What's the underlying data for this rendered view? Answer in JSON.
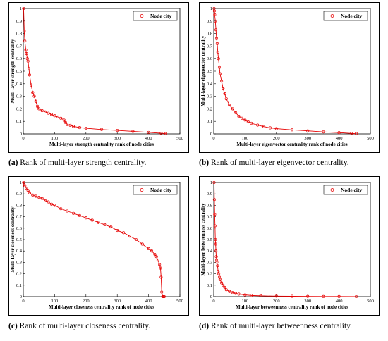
{
  "captions": [
    {
      "label": "(a)",
      "text": " Rank of multi-layer strength centrality."
    },
    {
      "label": "(b)",
      "text": " Rank of multi-layer eigenvector centrality."
    },
    {
      "label": "(c)",
      "text": " Rank of multi-layer closeness centrality."
    },
    {
      "label": "(d)",
      "text": " Rank of multi-layer betweenness centrality."
    }
  ],
  "colors": {
    "series": "#e60000",
    "axis": "#000000"
  },
  "chart_data": [
    {
      "type": "line",
      "xlabel": "Multi-layer strength centrality rank of node cities",
      "ylabel": "Multi-layer strength centrality",
      "xlim": [
        0,
        500
      ],
      "ylim": [
        0,
        1
      ],
      "xticks": [
        0,
        100,
        200,
        300,
        400,
        500
      ],
      "yticks": [
        0,
        0.1,
        0.2,
        0.3,
        0.4,
        0.5,
        0.6,
        0.7,
        0.8,
        0.9,
        1
      ],
      "legend": "top-right",
      "series": [
        {
          "name": "Node city",
          "x": [
            1,
            3,
            5,
            8,
            10,
            13,
            15,
            18,
            20,
            25,
            30,
            35,
            40,
            45,
            50,
            60,
            70,
            80,
            90,
            100,
            110,
            120,
            130,
            135,
            140,
            150,
            160,
            180,
            200,
            250,
            300,
            350,
            400,
            440,
            455
          ],
          "y": [
            1.0,
            0.82,
            0.74,
            0.67,
            0.64,
            0.6,
            0.58,
            0.52,
            0.47,
            0.39,
            0.33,
            0.3,
            0.26,
            0.22,
            0.2,
            0.185,
            0.175,
            0.165,
            0.155,
            0.145,
            0.135,
            0.125,
            0.11,
            0.09,
            0.075,
            0.068,
            0.06,
            0.05,
            0.045,
            0.035,
            0.028,
            0.02,
            0.012,
            0.005,
            0.002
          ]
        }
      ]
    },
    {
      "type": "line",
      "xlabel": "Multi-layer eigenvector centrality rank of node cities",
      "ylabel": "Multi-layer eigenvector centrality",
      "xlim": [
        0,
        500
      ],
      "ylim": [
        0,
        1
      ],
      "xticks": [
        0,
        100,
        200,
        300,
        400,
        500
      ],
      "yticks": [
        0,
        0.1,
        0.2,
        0.3,
        0.4,
        0.5,
        0.6,
        0.7,
        0.8,
        0.9,
        1
      ],
      "legend": "top-right",
      "series": [
        {
          "name": "Node city",
          "x": [
            1,
            2,
            3,
            5,
            7,
            9,
            11,
            13,
            15,
            18,
            20,
            25,
            30,
            35,
            40,
            50,
            60,
            70,
            80,
            90,
            100,
            110,
            120,
            140,
            160,
            180,
            200,
            250,
            300,
            350,
            400,
            440,
            455
          ],
          "y": [
            1.0,
            0.98,
            0.95,
            0.9,
            0.83,
            0.76,
            0.72,
            0.65,
            0.6,
            0.53,
            0.48,
            0.42,
            0.36,
            0.32,
            0.28,
            0.23,
            0.2,
            0.17,
            0.14,
            0.125,
            0.11,
            0.095,
            0.085,
            0.07,
            0.058,
            0.048,
            0.042,
            0.032,
            0.024,
            0.016,
            0.01,
            0.004,
            0.002
          ]
        }
      ]
    },
    {
      "type": "line",
      "xlabel": "Multi-layer closeness centrality rank of node cities",
      "ylabel": "Multi-layer closeness centrality",
      "xlim": [
        0,
        500
      ],
      "ylim": [
        0,
        1
      ],
      "xticks": [
        0,
        100,
        200,
        300,
        400,
        500
      ],
      "yticks": [
        0,
        0.1,
        0.2,
        0.3,
        0.4,
        0.5,
        0.6,
        0.7,
        0.8,
        0.9,
        1
      ],
      "legend": "top-right",
      "series": [
        {
          "name": "Node city",
          "x": [
            1,
            3,
            5,
            10,
            15,
            20,
            30,
            40,
            50,
            60,
            70,
            80,
            90,
            100,
            120,
            140,
            160,
            180,
            200,
            220,
            240,
            260,
            280,
            300,
            320,
            340,
            360,
            380,
            400,
            410,
            420,
            425,
            430,
            435,
            438,
            440,
            442,
            445,
            448,
            450
          ],
          "y": [
            1.0,
            0.98,
            0.97,
            0.95,
            0.93,
            0.91,
            0.89,
            0.88,
            0.87,
            0.86,
            0.84,
            0.83,
            0.81,
            0.8,
            0.77,
            0.75,
            0.73,
            0.71,
            0.69,
            0.67,
            0.65,
            0.63,
            0.61,
            0.58,
            0.56,
            0.53,
            0.5,
            0.46,
            0.42,
            0.4,
            0.37,
            0.35,
            0.32,
            0.28,
            0.25,
            0.17,
            0.04,
            0.0,
            0.0,
            0.0
          ]
        }
      ]
    },
    {
      "type": "line",
      "xlabel": "Multi-layer betweenness centrality rank of node cities",
      "ylabel": "Multi-layer betweenness centrality",
      "xlim": [
        0,
        500
      ],
      "ylim": [
        0,
        1
      ],
      "xticks": [
        0,
        100,
        200,
        300,
        400,
        500
      ],
      "yticks": [
        0,
        0.1,
        0.2,
        0.3,
        0.4,
        0.5,
        0.6,
        0.7,
        0.8,
        0.9,
        1
      ],
      "legend": "top-right",
      "series": [
        {
          "name": "Node city",
          "x": [
            1,
            2,
            3,
            4,
            5,
            6,
            7,
            8,
            9,
            10,
            12,
            14,
            16,
            18,
            20,
            25,
            30,
            35,
            40,
            50,
            60,
            70,
            80,
            100,
            120,
            150,
            200,
            250,
            300,
            350,
            400,
            455
          ],
          "y": [
            1.0,
            0.85,
            0.72,
            0.62,
            0.5,
            0.46,
            0.4,
            0.35,
            0.32,
            0.3,
            0.27,
            0.22,
            0.2,
            0.17,
            0.15,
            0.12,
            0.1,
            0.08,
            0.06,
            0.045,
            0.035,
            0.028,
            0.022,
            0.015,
            0.01,
            0.007,
            0.004,
            0.003,
            0.002,
            0.001,
            0.001,
            0.0
          ]
        }
      ]
    }
  ]
}
